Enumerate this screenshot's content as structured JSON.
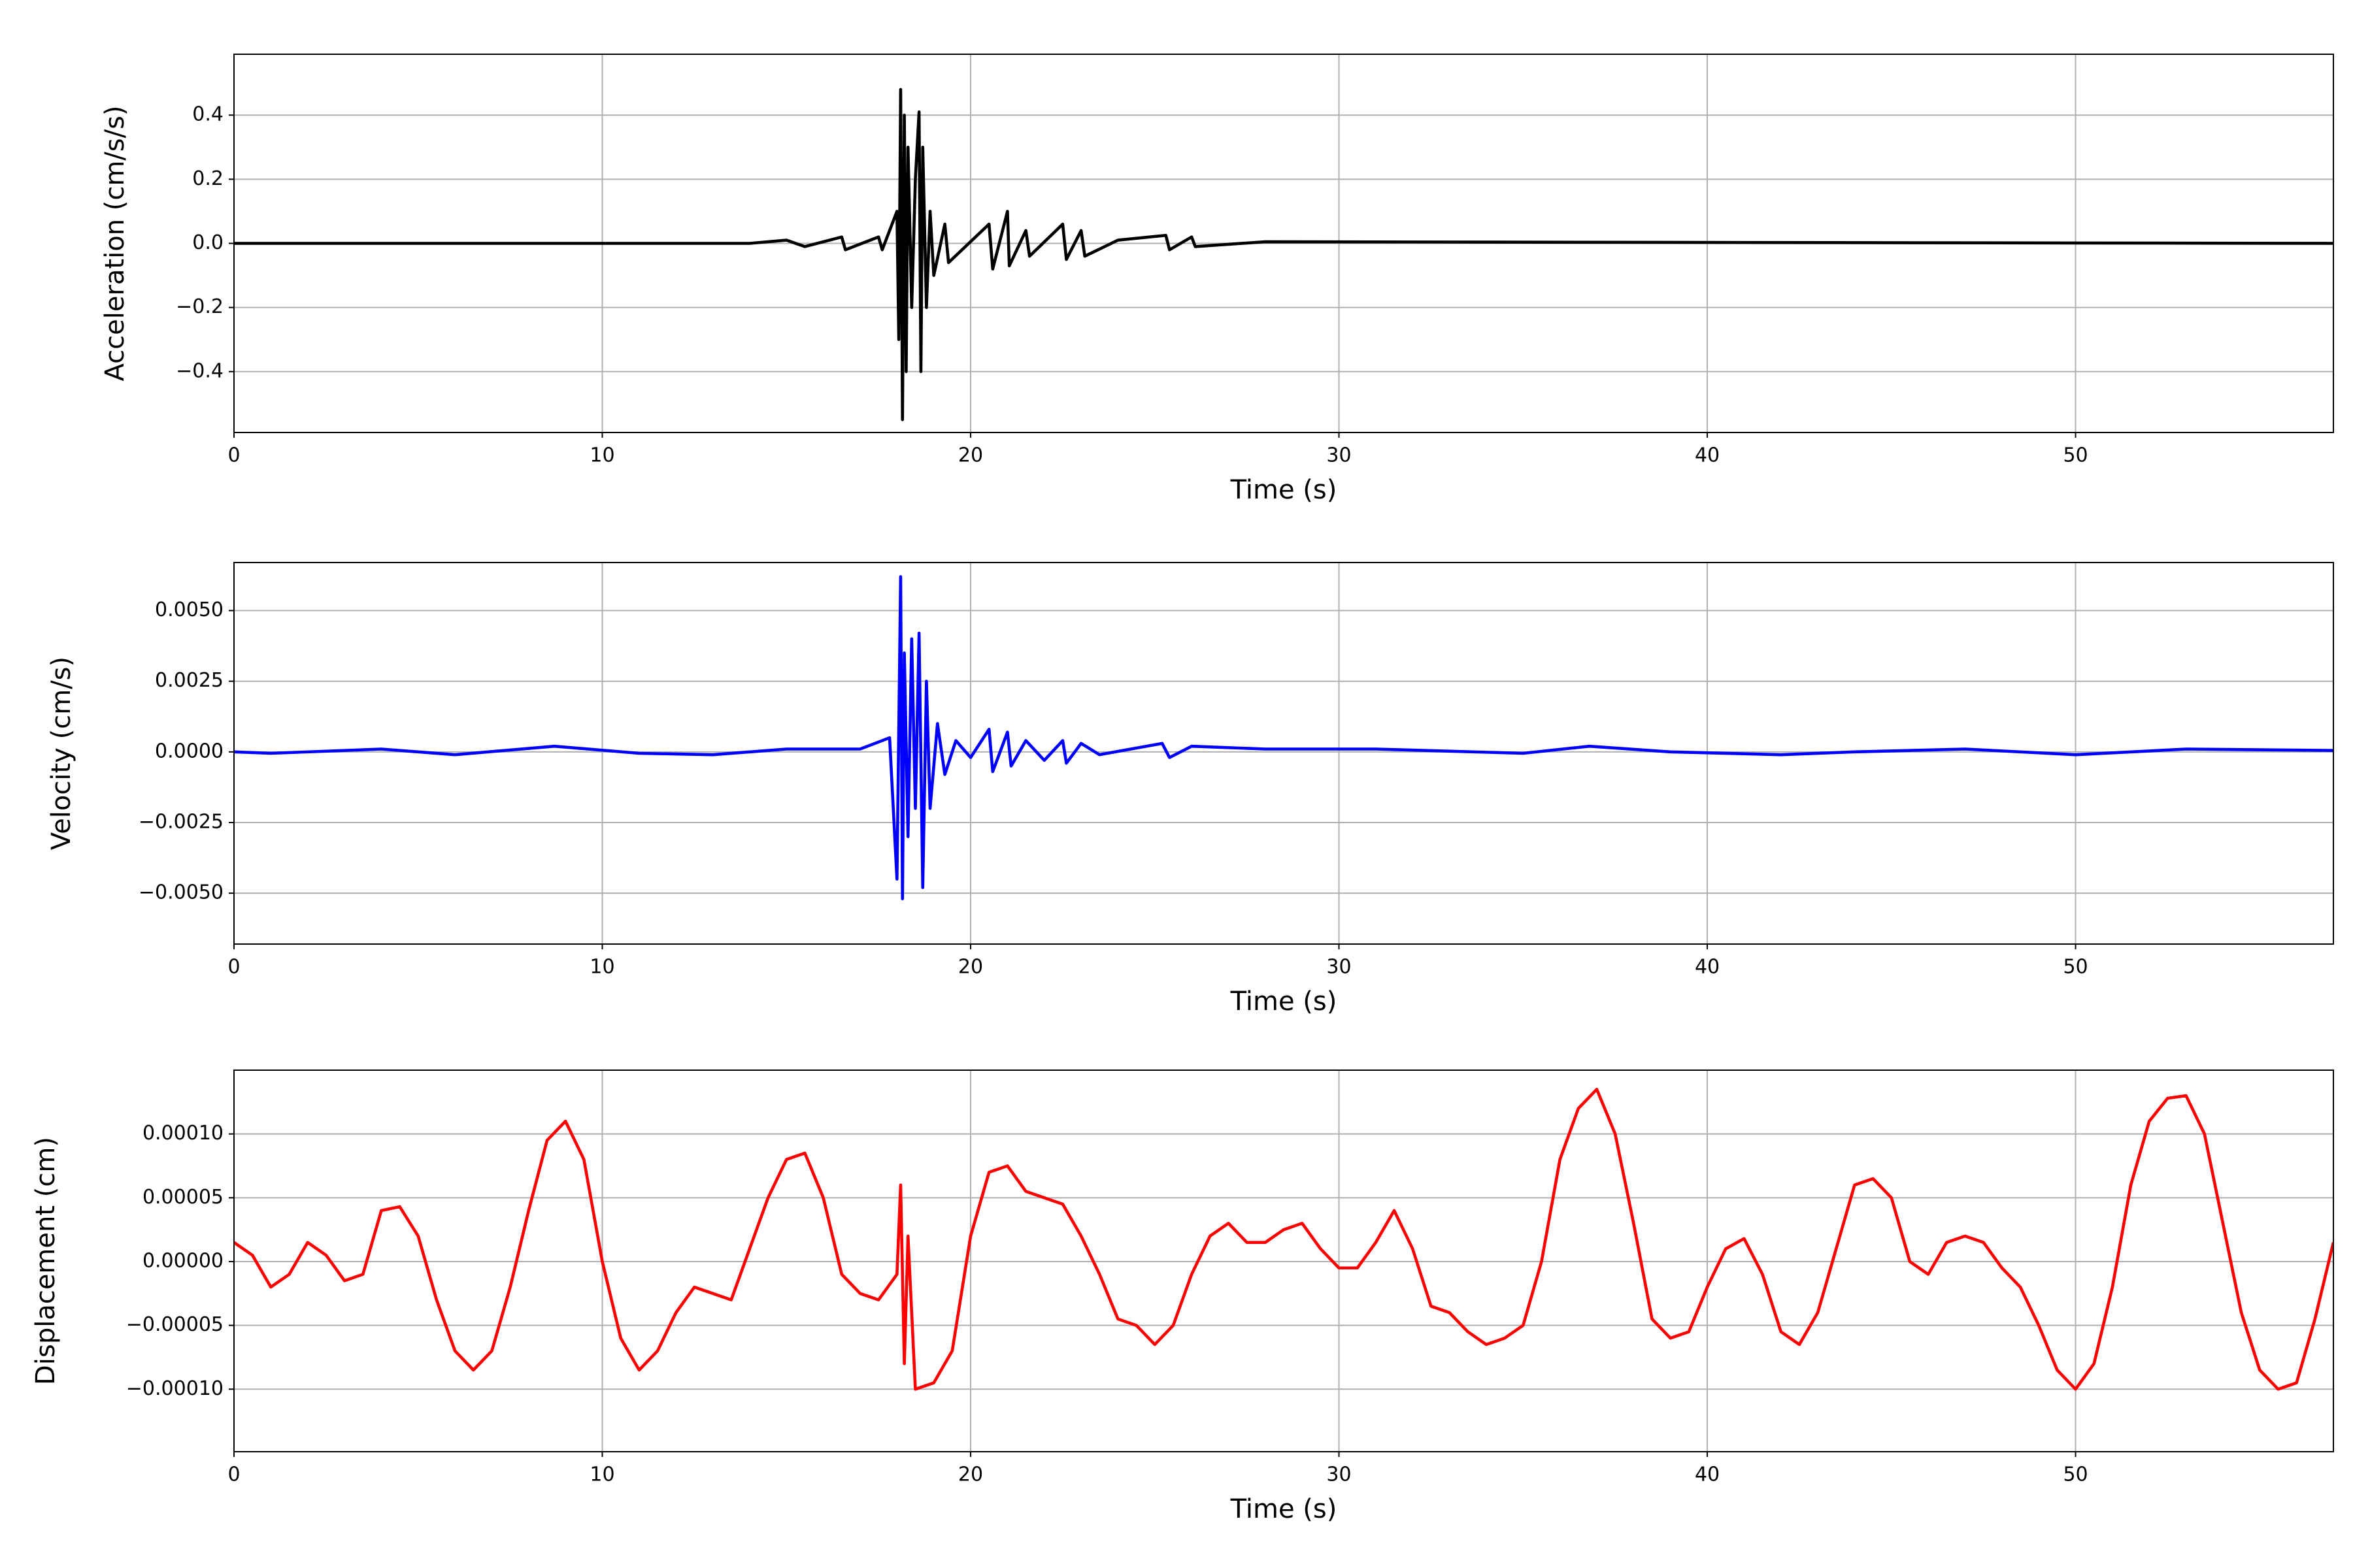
{
  "chart_data": [
    {
      "type": "line",
      "xlabel": "Time (s)",
      "ylabel": "Acceleration (cm/s/s)",
      "color": "#000000",
      "grid": true,
      "xlim": [
        0,
        57
      ],
      "xticks": [
        0,
        10,
        20,
        30,
        40,
        50
      ],
      "ylim": [
        -0.59,
        0.59
      ],
      "yticks": [
        {
          "value": -0.4,
          "label": "−0.4"
        },
        {
          "value": -0.2,
          "label": "−0.2"
        },
        {
          "value": 0,
          "label": "0.0"
        },
        {
          "value": 0.2,
          "label": "0.2"
        },
        {
          "value": 0.4,
          "label": "0.4"
        }
      ],
      "x": [
        0,
        14,
        15,
        15.5,
        16.5,
        16.6,
        17.5,
        17.6,
        18.0,
        18.05,
        18.1,
        18.15,
        18.2,
        18.25,
        18.3,
        18.4,
        18.5,
        18.6,
        18.65,
        18.7,
        18.8,
        18.9,
        19.0,
        19.3,
        19.4,
        20.5,
        20.6,
        21.0,
        21.05,
        21.5,
        21.6,
        22.5,
        22.6,
        23.0,
        23.1,
        24,
        25.3,
        25.4,
        26,
        26.1,
        28,
        57
      ],
      "values": [
        0,
        0,
        0.01,
        -0.01,
        0.02,
        -0.02,
        0.02,
        -0.02,
        0.1,
        -0.3,
        0.48,
        -0.55,
        0.4,
        -0.4,
        0.3,
        -0.2,
        0.2,
        0.41,
        -0.4,
        0.3,
        -0.2,
        0.1,
        -0.1,
        0.06,
        -0.06,
        0.06,
        -0.08,
        0.1,
        -0.07,
        0.04,
        -0.04,
        0.06,
        -0.05,
        0.04,
        -0.04,
        0.01,
        0.025,
        -0.02,
        0.02,
        -0.01,
        0.005,
        0
      ]
    },
    {
      "type": "line",
      "xlabel": "Time (s)",
      "ylabel": "Velocity (cm/s)",
      "color": "#0000ff",
      "grid": true,
      "xlim": [
        0,
        57
      ],
      "xticks": [
        0,
        10,
        20,
        30,
        40,
        50
      ],
      "ylim": [
        -0.0068,
        0.0067
      ],
      "yticks": [
        {
          "value": -0.005,
          "label": "−0.0050"
        },
        {
          "value": -0.0025,
          "label": "−0.0025"
        },
        {
          "value": 0,
          "label": "0.0000"
        },
        {
          "value": 0.0025,
          "label": "0.0025"
        },
        {
          "value": 0.005,
          "label": "0.0050"
        }
      ],
      "x": [
        0,
        1,
        4,
        6,
        8.7,
        11,
        13,
        15,
        17,
        17.8,
        18.0,
        18.1,
        18.15,
        18.2,
        18.3,
        18.4,
        18.5,
        18.6,
        18.7,
        18.8,
        18.9,
        19.1,
        19.3,
        19.6,
        20,
        20.5,
        20.6,
        21,
        21.1,
        21.5,
        22,
        22.5,
        22.6,
        23,
        23.5,
        25.2,
        25.4,
        26,
        28,
        31,
        35,
        36.8,
        39,
        42,
        44,
        47,
        50,
        53,
        57
      ],
      "values": [
        0,
        -5e-05,
        0.0001,
        -0.0001,
        0.0002,
        -5e-05,
        -0.0001,
        0.0001,
        0.0001,
        0.0005,
        -0.0045,
        0.0062,
        -0.0052,
        0.0035,
        -0.003,
        0.004,
        -0.002,
        0.0042,
        -0.0048,
        0.0025,
        -0.002,
        0.001,
        -0.0008,
        0.0004,
        -0.0002,
        0.0008,
        -0.0007,
        0.0007,
        -0.0005,
        0.0004,
        -0.0003,
        0.0004,
        -0.0004,
        0.0003,
        -0.0001,
        0.0003,
        -0.0002,
        0.0002,
        0.0001,
        0.0001,
        -5e-05,
        0.0002,
        0,
        -0.0001,
        0,
        0.0001,
        -0.0001,
        0.0001,
        5e-05
      ]
    },
    {
      "type": "line",
      "xlabel": "Time (s)",
      "ylabel": "Displacement (cm)",
      "color": "#ff0000",
      "grid": true,
      "xlim": [
        0,
        57
      ],
      "xticks": [
        0,
        10,
        20,
        30,
        40,
        50
      ],
      "ylim": [
        -0.000149,
        0.00015
      ],
      "yticks": [
        {
          "value": -0.0001,
          "label": "−0.00010"
        },
        {
          "value": -5e-05,
          "label": "−0.00005"
        },
        {
          "value": 0,
          "label": "0.00000"
        },
        {
          "value": 5e-05,
          "label": "0.00005"
        },
        {
          "value": 0.0001,
          "label": "0.00010"
        }
      ],
      "x": [
        0,
        0.5,
        1,
        1.5,
        2,
        2.5,
        3,
        3.5,
        4,
        4.5,
        5,
        5.5,
        6,
        6.5,
        7,
        7.5,
        8,
        8.5,
        9,
        9.5,
        10,
        10.5,
        11,
        11.5,
        12,
        12.5,
        13,
        13.5,
        14,
        14.5,
        15,
        15.5,
        16,
        16.5,
        17,
        17.5,
        18,
        18.1,
        18.2,
        18.3,
        18.5,
        19,
        19.5,
        20,
        20.5,
        21,
        21.5,
        22,
        22.5,
        23,
        23.5,
        24,
        24.5,
        25,
        25.5,
        26,
        26.5,
        27,
        27.5,
        28,
        28.5,
        29,
        29.5,
        30,
        30.5,
        31,
        31.5,
        32,
        32.5,
        33,
        33.5,
        34,
        34.5,
        35,
        35.5,
        36,
        36.5,
        37,
        37.5,
        38,
        38.5,
        39,
        39.5,
        40,
        40.5,
        41,
        41.5,
        42,
        42.5,
        43,
        43.5,
        44,
        44.5,
        45,
        45.5,
        46,
        46.5,
        47,
        47.5,
        48,
        48.5,
        49,
        49.5,
        50,
        50.5,
        51,
        51.5,
        52,
        52.5,
        53,
        53.5,
        54,
        54.5,
        55,
        55.5,
        56,
        56.5,
        57
      ],
      "values": [
        1.5e-05,
        5e-06,
        -2e-05,
        -1e-05,
        1.5e-05,
        5e-06,
        -1.5e-05,
        -1e-05,
        4e-05,
        4.3e-05,
        2e-05,
        -3e-05,
        -7e-05,
        -8.5e-05,
        -7e-05,
        -2e-05,
        4e-05,
        9.5e-05,
        0.00011,
        8e-05,
        0,
        -6e-05,
        -8.5e-05,
        -7e-05,
        -4e-05,
        -2e-05,
        -2.5e-05,
        -3e-05,
        1e-05,
        5e-05,
        8e-05,
        8.5e-05,
        5e-05,
        -1e-05,
        -2.5e-05,
        -3e-05,
        -1e-05,
        6e-05,
        -8e-05,
        2e-05,
        -0.0001,
        -9.5e-05,
        -7e-05,
        2e-05,
        7e-05,
        7.5e-05,
        5.5e-05,
        5e-05,
        4.5e-05,
        2e-05,
        -1e-05,
        -4.5e-05,
        -5e-05,
        -6.5e-05,
        -5e-05,
        -1e-05,
        2e-05,
        3e-05,
        1.5e-05,
        1.5e-05,
        2.5e-05,
        3e-05,
        1e-05,
        -5e-06,
        -5e-06,
        1.5e-05,
        4e-05,
        1e-05,
        -3.5e-05,
        -4e-05,
        -5.5e-05,
        -6.5e-05,
        -6e-05,
        -5e-05,
        0,
        8e-05,
        0.00012,
        0.000135,
        0.0001,
        3e-05,
        -4.5e-05,
        -6e-05,
        -5.5e-05,
        -2e-05,
        1e-05,
        1.8e-05,
        -1e-05,
        -5.5e-05,
        -6.5e-05,
        -4e-05,
        1e-05,
        6e-05,
        6.5e-05,
        5e-05,
        0,
        -1e-05,
        1.5e-05,
        2e-05,
        1.5e-05,
        -5e-06,
        -2e-05,
        -5e-05,
        -8.5e-05,
        -0.0001,
        -8e-05,
        -2e-05,
        6e-05,
        0.00011,
        0.000128,
        0.00013,
        0.0001,
        3e-05,
        -4e-05,
        -8.5e-05,
        -0.0001,
        -9.5e-05,
        -4.5e-05,
        1.5e-05
      ]
    }
  ]
}
